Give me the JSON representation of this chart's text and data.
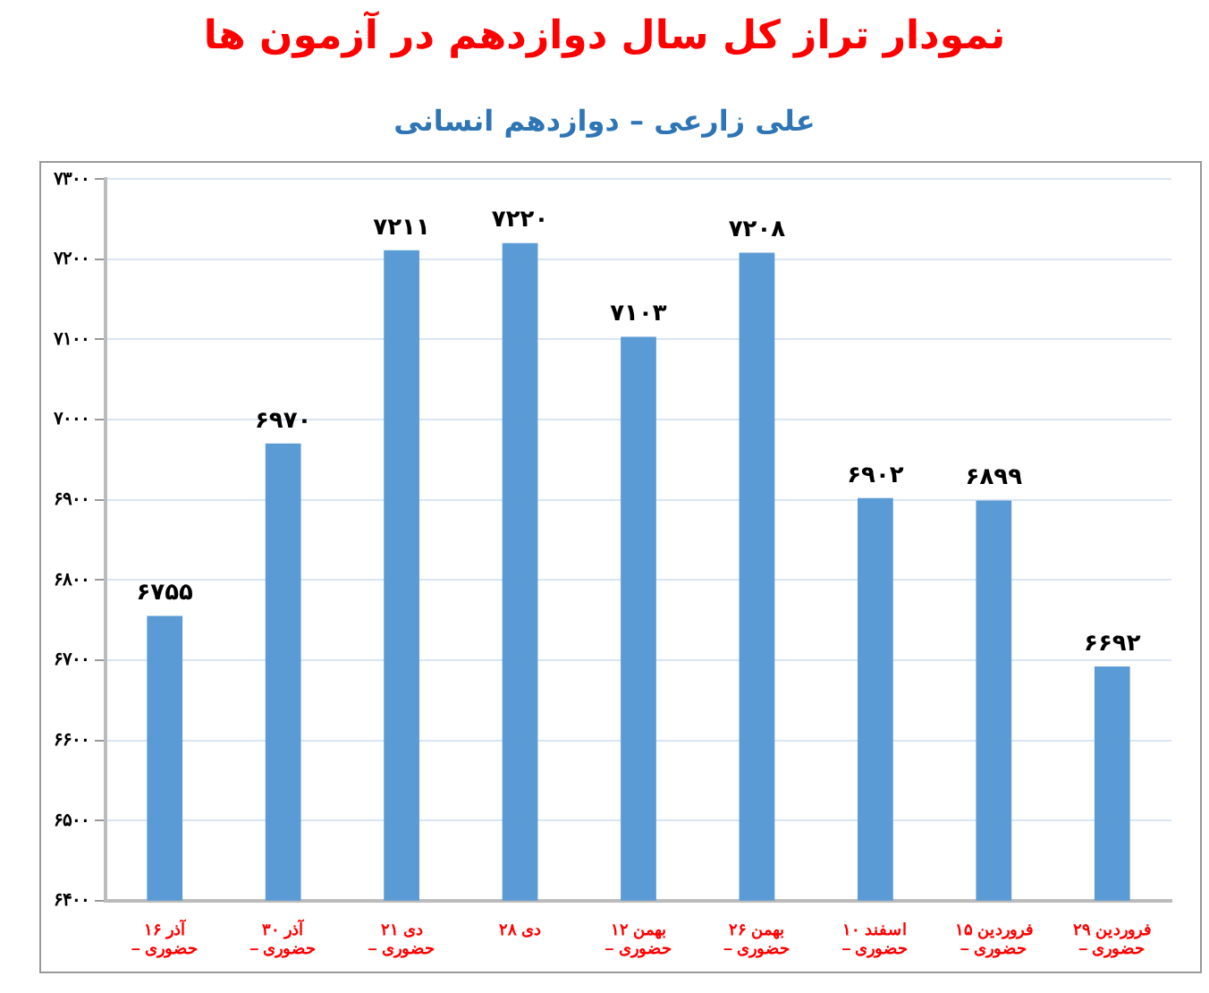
{
  "chart_data": {
    "type": "bar",
    "title": "نمودار تراز کل سال دوازدهم در آزمون ها",
    "subtitle": "علی زارعی – دوازدهم انسانی",
    "categories": [
      "۱۶ آذر – حضوری",
      "۳۰ آذر – حضوری",
      "۲۱ دی – حضوری",
      "۲۸ دی",
      "۱۲ بهمن – حضوری",
      "۲۶ بهمن – حضوری",
      "۱۰ اسفند – حضوری",
      "۱۵ فروردین – حضوری",
      "۲۹ فروردین – حضوری"
    ],
    "values": [
      6755,
      6970,
      7211,
      7220,
      7103,
      7208,
      6902,
      6899,
      6692
    ],
    "value_labels": [
      "۶۷۵۵",
      "۶۹۷۰",
      "۷۲۱۱",
      "۷۲۲۰",
      "۷۱۰۳",
      "۷۲۰۸",
      "۶۹۰۲",
      "۶۸۹۹",
      "۶۶۹۲"
    ],
    "color": "#5b9bd5",
    "ylim": [
      6400,
      7300
    ],
    "yticks": [
      {
        "value": 6400,
        "label": "۶۴۰۰"
      },
      {
        "value": 6500,
        "label": "۶۵۰۰"
      },
      {
        "value": 6600,
        "label": "۶۶۰۰"
      },
      {
        "value": 6700,
        "label": "۶۷۰۰"
      },
      {
        "value": 6800,
        "label": "۶۸۰۰"
      },
      {
        "value": 6900,
        "label": "۶۹۰۰"
      },
      {
        "value": 7000,
        "label": "۷۰۰۰"
      },
      {
        "value": 7100,
        "label": "۷۱۰۰"
      },
      {
        "value": 7200,
        "label": "۷۲۰۰"
      },
      {
        "value": 7300,
        "label": "۷۳۰۰"
      }
    ],
    "grid": "y",
    "legend": false
  }
}
